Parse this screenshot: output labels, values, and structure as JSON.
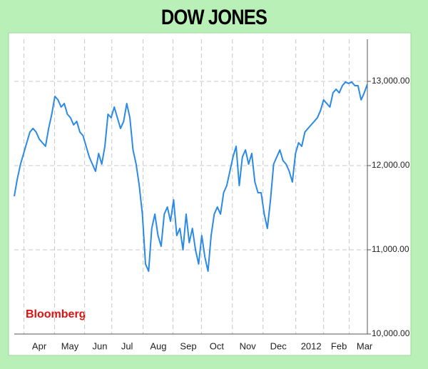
{
  "chart_data": {
    "type": "line",
    "title": "DOW JONES",
    "annotation": "Bloomberg",
    "series": [
      {
        "name": "Dow Jones",
        "color": "#2b8ae6",
        "values": [
          11636,
          11847,
          12017,
          12144,
          12271,
          12398,
          12441,
          12398,
          12314,
          12271,
          12229,
          12441,
          12610,
          12822,
          12780,
          12695,
          12737,
          12610,
          12568,
          12483,
          12525,
          12398,
          12356,
          12229,
          12102,
          12017,
          11932,
          12144,
          12017,
          12229,
          12610,
          12568,
          12695,
          12568,
          12441,
          12525,
          12737,
          12568,
          12186,
          12017,
          11763,
          11424,
          10831,
          10746,
          11254,
          11424,
          11169,
          11042,
          11424,
          11508,
          11339,
          11593,
          11169,
          11254,
          11000,
          11424,
          11085,
          11254,
          11000,
          10831,
          11169,
          10915,
          10746,
          11169,
          11424,
          11508,
          11424,
          11678,
          11763,
          11932,
          12102,
          12229,
          11763,
          12102,
          12186,
          12017,
          12144,
          11805,
          11678,
          11678,
          11424,
          11254,
          11593,
          12017,
          12102,
          12186,
          12059,
          12017,
          11932,
          11805,
          12144,
          12271,
          12229,
          12398,
          12441,
          12483,
          12525,
          12568,
          12653,
          12780,
          12737,
          12695,
          12864,
          12907,
          12864,
          12949,
          12992,
          12975,
          12992,
          12949,
          12949,
          12780,
          12864,
          12966
        ]
      }
    ],
    "xlim": [
      0,
      113
    ],
    "xticks": [
      {
        "value": 8,
        "label": "Apr"
      },
      {
        "value": 17.8,
        "label": "May"
      },
      {
        "value": 27.4,
        "label": "Jun"
      },
      {
        "value": 36.1,
        "label": "Jul"
      },
      {
        "value": 46.1,
        "label": "Aug"
      },
      {
        "value": 55.7,
        "label": "Sep"
      },
      {
        "value": 64.8,
        "label": "Oct"
      },
      {
        "value": 74.7,
        "label": "Nov"
      },
      {
        "value": 84.5,
        "label": "Dec"
      },
      {
        "value": 95,
        "label": "2012"
      },
      {
        "value": 103.9,
        "label": "Feb"
      },
      {
        "value": 112.1,
        "label": "Mar"
      }
    ],
    "ylim": [
      10000,
      13500
    ],
    "yticks": [
      {
        "value": 10000,
        "label": "10,000.00"
      },
      {
        "value": 11000,
        "label": "11,000.00"
      },
      {
        "value": 12000,
        "label": "12,000.00"
      },
      {
        "value": 13000,
        "label": "13,000.00"
      }
    ],
    "grid": true
  }
}
